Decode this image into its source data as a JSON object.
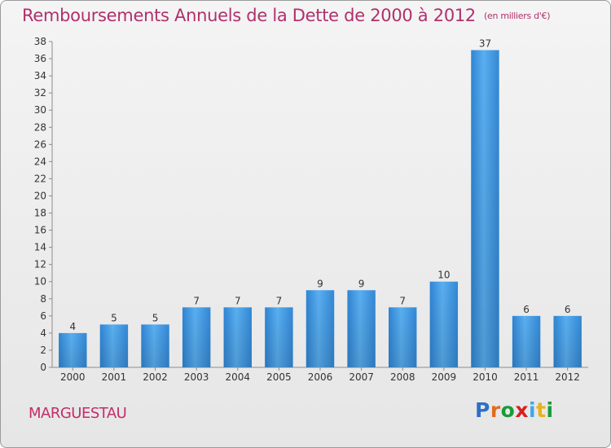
{
  "header": {
    "title": "Remboursements Annuels de la Dette de 2000 à 2012",
    "unit": "(en milliers d'€)"
  },
  "footer": {
    "commune": "MARGUESTAU",
    "brand_letters": [
      "P",
      "r",
      "o",
      "x",
      "i",
      "t",
      "i"
    ]
  },
  "colors": {
    "title": "#b0306c",
    "bar": "#3a93de",
    "brand": [
      "#2e6fc4",
      "#e06b1f",
      "#1a9a3a",
      "#d62020",
      "#3fa8e8",
      "#e8b21a",
      "#1a9a3a"
    ]
  },
  "chart_data": {
    "type": "bar",
    "categories": [
      "2000",
      "2001",
      "2002",
      "2003",
      "2004",
      "2005",
      "2006",
      "2007",
      "2008",
      "2009",
      "2010",
      "2011",
      "2012"
    ],
    "values": [
      4,
      5,
      5,
      7,
      7,
      7,
      9,
      9,
      7,
      10,
      37,
      6,
      6
    ],
    "ylim": [
      0,
      38
    ],
    "yticks": [
      0,
      2,
      4,
      6,
      8,
      10,
      12,
      14,
      16,
      18,
      20,
      22,
      24,
      26,
      28,
      30,
      32,
      34,
      36,
      38
    ],
    "grid": false,
    "data_labels": true
  }
}
